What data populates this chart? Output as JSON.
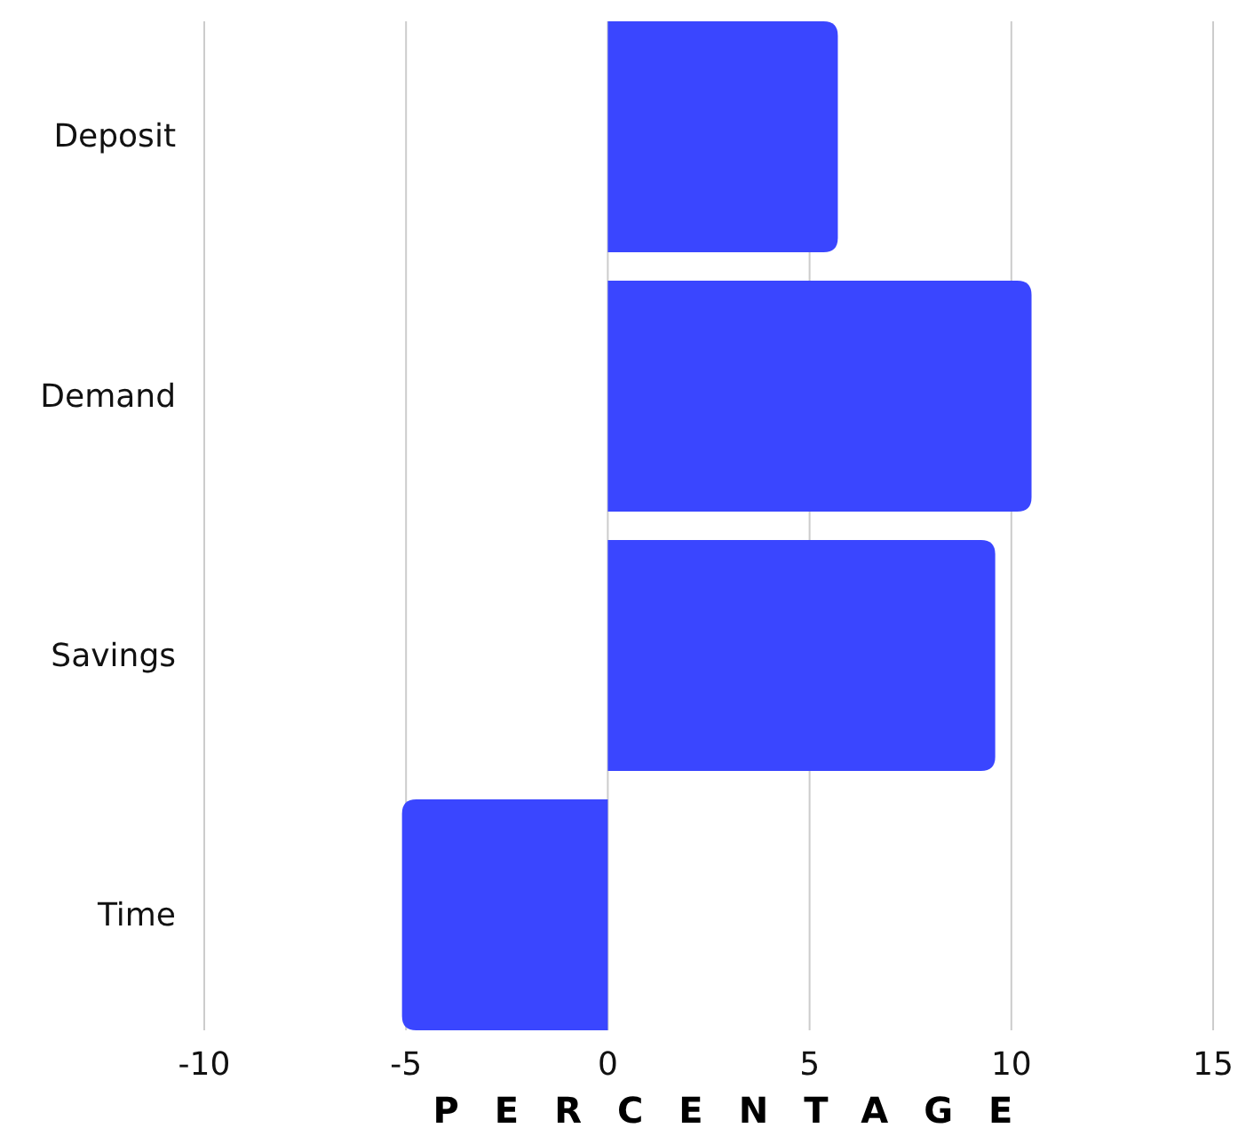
{
  "chart_data": {
    "type": "bar",
    "orientation": "horizontal",
    "xlabel": "PERCENTAGE",
    "categories": [
      "Deposit",
      "Demand",
      "Savings",
      "Time"
    ],
    "values": [
      5.7,
      10.5,
      9.6,
      -5.1
    ],
    "color": "#3a46ff",
    "xlim": [
      -10,
      15
    ],
    "xticks": [
      -10,
      -5,
      0,
      5,
      10,
      15
    ],
    "grid": "x"
  }
}
